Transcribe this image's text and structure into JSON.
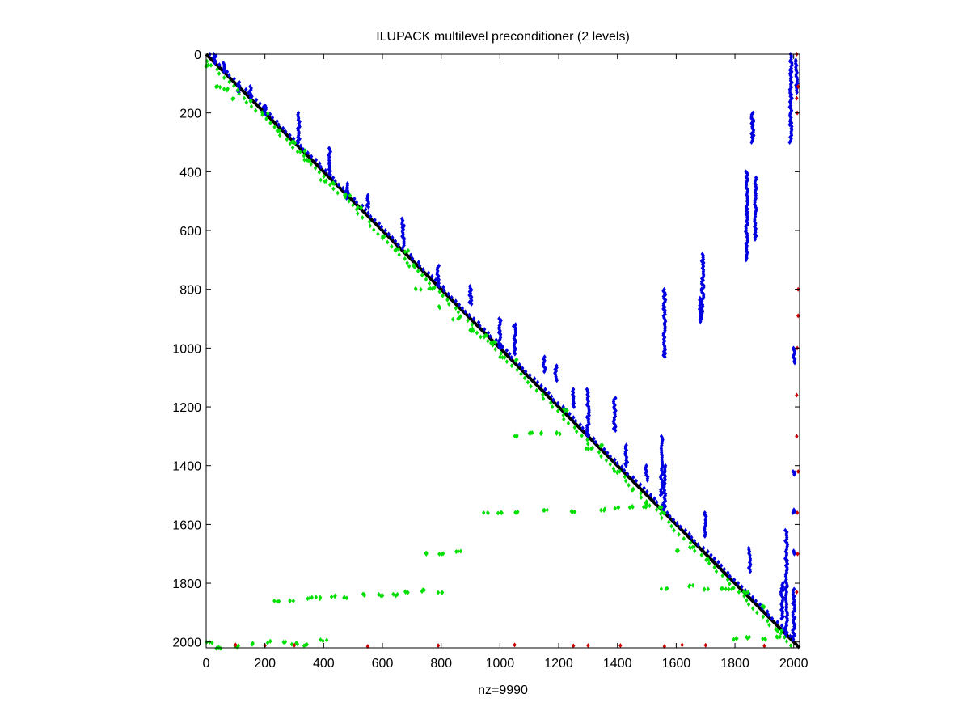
{
  "chart_data": {
    "type": "scatter",
    "title": "ILUPACK multilevel preconditioner (2 levels)",
    "xlabel": "nz=9990",
    "ylabel": "",
    "xlim": [
      0,
      2020
    ],
    "ylim": [
      2020,
      0
    ],
    "y_reversed": true,
    "grid": false,
    "x_ticks": [
      0,
      200,
      400,
      600,
      800,
      1000,
      1200,
      1400,
      1600,
      1800,
      2000
    ],
    "y_ticks": [
      0,
      200,
      400,
      600,
      800,
      1000,
      1200,
      1400,
      1600,
      1800,
      2000
    ],
    "tick_labels": [
      "0",
      "200",
      "400",
      "600",
      "800",
      "1000",
      "1200",
      "1400",
      "1600",
      "1800",
      "2000"
    ],
    "nz": 9990,
    "matrix_size": 2020,
    "series": [
      {
        "role": "diagonal",
        "color": "#000000",
        "line": [
          [
            0,
            0
          ],
          [
            2020,
            2020
          ]
        ]
      },
      {
        "role": "upper",
        "color": "#0000e0",
        "clusters": [
          [
            30,
            0,
            30
          ],
          [
            60,
            30,
            60
          ],
          [
            110,
            95,
            130
          ],
          [
            150,
            110,
            150
          ],
          [
            200,
            175,
            205
          ],
          [
            315,
            200,
            300
          ],
          [
            420,
            320,
            410
          ],
          [
            480,
            440,
            490
          ],
          [
            550,
            480,
            520
          ],
          [
            670,
            560,
            650
          ],
          [
            790,
            720,
            790
          ],
          [
            900,
            790,
            850
          ],
          [
            1000,
            900,
            1000
          ],
          [
            1050,
            920,
            1020
          ],
          [
            1150,
            1030,
            1080
          ],
          [
            1190,
            1060,
            1110
          ],
          [
            1250,
            1140,
            1200
          ],
          [
            1300,
            1140,
            1300
          ],
          [
            1390,
            1170,
            1280
          ],
          [
            1430,
            1330,
            1400
          ],
          [
            1500,
            1400,
            1450
          ],
          [
            1550,
            1300,
            1500
          ],
          [
            1560,
            1400,
            1550
          ],
          [
            1560,
            800,
            1030
          ],
          [
            1690,
            680,
            900
          ],
          [
            1680,
            830,
            910
          ],
          [
            1700,
            1560,
            1640
          ],
          [
            1860,
            200,
            300
          ],
          [
            1840,
            400,
            700
          ],
          [
            1870,
            420,
            630
          ],
          [
            1850,
            1680,
            1760
          ],
          [
            1960,
            1800,
            1920
          ],
          [
            1975,
            1620,
            1980
          ],
          [
            2000,
            1820,
            1990
          ],
          [
            1990,
            0,
            300
          ],
          [
            2010,
            20,
            130
          ],
          [
            2000,
            1000,
            1050
          ],
          [
            2000,
            1420,
            1430
          ],
          [
            2000,
            1550,
            1560
          ],
          [
            2000,
            1690,
            1700
          ]
        ]
      },
      {
        "role": "lower",
        "color": "#00e000",
        "points": [
          [
            0,
            40
          ],
          [
            40,
            110
          ],
          [
            70,
            120
          ],
          [
            100,
            150
          ],
          [
            150,
            160
          ],
          [
            200,
            200
          ],
          [
            250,
            260
          ],
          [
            300,
            300
          ],
          [
            330,
            330
          ],
          [
            350,
            360
          ],
          [
            400,
            430
          ],
          [
            430,
            440
          ],
          [
            480,
            480
          ],
          [
            520,
            520
          ],
          [
            600,
            620
          ],
          [
            650,
            665
          ],
          [
            680,
            670
          ],
          [
            700,
            720
          ],
          [
            720,
            800
          ],
          [
            760,
            800
          ],
          [
            800,
            860
          ],
          [
            850,
            900
          ],
          [
            900,
            940
          ],
          [
            950,
            960
          ],
          [
            980,
            980
          ],
          [
            1000,
            1030
          ],
          [
            1050,
            1040
          ],
          [
            1050,
            1300
          ],
          [
            1100,
            1290
          ],
          [
            1150,
            1290
          ],
          [
            1200,
            1290
          ],
          [
            1220,
            1210
          ],
          [
            1300,
            1340
          ],
          [
            1350,
            1330
          ],
          [
            1400,
            1420
          ],
          [
            1450,
            1480
          ],
          [
            1500,
            1530
          ],
          [
            1560,
            1560
          ],
          [
            1600,
            1690
          ],
          [
            1650,
            1680
          ],
          [
            1700,
            1720
          ],
          [
            1780,
            1820
          ],
          [
            1840,
            1830
          ],
          [
            1900,
            1880
          ],
          [
            1950,
            1960
          ],
          [
            950,
            1560
          ],
          [
            1000,
            1560
          ],
          [
            1050,
            1560
          ],
          [
            1150,
            1550
          ],
          [
            1250,
            1555
          ],
          [
            1350,
            1550
          ],
          [
            1400,
            1545
          ],
          [
            1450,
            1540
          ],
          [
            1500,
            1540
          ],
          [
            1550,
            1540
          ],
          [
            740,
            1700
          ],
          [
            800,
            1700
          ],
          [
            860,
            1690
          ],
          [
            240,
            1860
          ],
          [
            290,
            1860
          ],
          [
            350,
            1850
          ],
          [
            380,
            1850
          ],
          [
            430,
            1845
          ],
          [
            480,
            1850
          ],
          [
            540,
            1840
          ],
          [
            590,
            1840
          ],
          [
            640,
            1840
          ],
          [
            680,
            1830
          ],
          [
            740,
            1825
          ],
          [
            800,
            1830
          ],
          [
            1560,
            1820
          ],
          [
            1650,
            1810
          ],
          [
            1700,
            1820
          ],
          [
            1760,
            1820
          ],
          [
            10,
            2000
          ],
          [
            40,
            2020
          ],
          [
            100,
            2015
          ],
          [
            150,
            2005
          ],
          [
            220,
            2000
          ],
          [
            260,
            2000
          ],
          [
            300,
            2005
          ],
          [
            340,
            2010
          ],
          [
            400,
            1995
          ],
          [
            1800,
            1990
          ],
          [
            1850,
            1985
          ],
          [
            1900,
            1990
          ],
          [
            1950,
            1985
          ]
        ]
      },
      {
        "role": "last-level",
        "color": "#cc0000",
        "points": [
          [
            2010,
            0
          ],
          [
            2015,
            110
          ],
          [
            2010,
            150
          ],
          [
            2012,
            200
          ],
          [
            2015,
            800
          ],
          [
            2015,
            890
          ],
          [
            2012,
            1000
          ],
          [
            2010,
            1160
          ],
          [
            2010,
            1300
          ],
          [
            2015,
            1420
          ],
          [
            2012,
            1560
          ],
          [
            2013,
            1700
          ],
          [
            2010,
            1830
          ],
          [
            100,
            2010
          ],
          [
            200,
            2012
          ],
          [
            300,
            2011
          ],
          [
            550,
            2015
          ],
          [
            790,
            2012
          ],
          [
            1050,
            2010
          ],
          [
            1250,
            2013
          ],
          [
            1300,
            2012
          ],
          [
            1410,
            2012
          ],
          [
            1560,
            2015
          ],
          [
            1620,
            2010
          ],
          [
            1700,
            2011
          ],
          [
            1900,
            2013
          ]
        ]
      }
    ]
  }
}
